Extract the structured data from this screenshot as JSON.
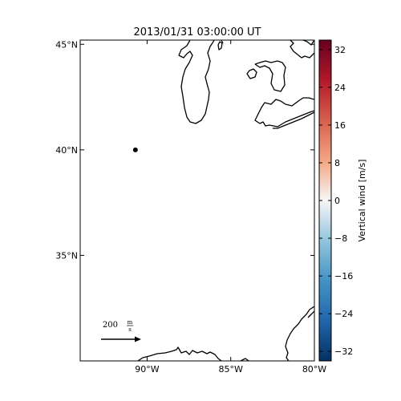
{
  "title": "2013/01/31 03:00:00 UT",
  "latitude_labels": [
    "45°N",
    "40°N",
    "35°N"
  ],
  "latitude_values": [
    45,
    40,
    35
  ],
  "longitude_labels": [
    "90°W",
    "85°W",
    "80°W"
  ],
  "longitude_values": [
    -90,
    -85,
    -80
  ],
  "map_extent": {
    "lon_min": -94,
    "lon_max": -80,
    "lat_min": 30,
    "lat_max": 45.2
  },
  "station_point": {
    "lon": -90.7,
    "lat": 40.0
  },
  "reference_arrow": {
    "value_label": "200",
    "unit_numerator": "m",
    "unit_denominator": "s"
  },
  "colorbar": {
    "label": "Vertical wind [m/s]",
    "ticks": [
      "32",
      "24",
      "16",
      "8",
      "0",
      "−8",
      "−16",
      "−24",
      "−32"
    ],
    "tick_values": [
      32,
      24,
      16,
      8,
      0,
      -8,
      -16,
      -24,
      -32
    ],
    "range": [
      -34,
      34
    ],
    "colormap": "RdBu_r",
    "color_stops": [
      "#053061",
      "#2166ac",
      "#4393c3",
      "#92c5de",
      "#f7f7f7",
      "#f4a582",
      "#d6604d",
      "#b2182b",
      "#67001f"
    ]
  },
  "colors": {
    "coastline": "#000000",
    "background": "#ffffff"
  }
}
